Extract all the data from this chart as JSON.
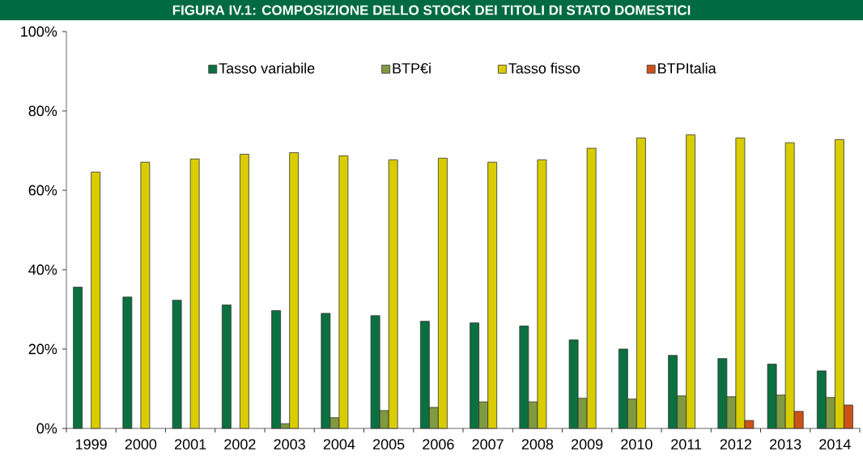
{
  "chart_data": {
    "type": "bar",
    "title": "FIGURA IV.1: COMPOSIZIONE DELLO STOCK DEI TITOLI DI STATO DOMESTICI",
    "categories": [
      "1999",
      "2000",
      "2001",
      "2002",
      "2003",
      "2004",
      "2005",
      "2006",
      "2007",
      "2008",
      "2009",
      "2010",
      "2011",
      "2012",
      "2013",
      "2014"
    ],
    "series": [
      {
        "name": "Tasso variabile",
        "color": "#0b7040",
        "values": [
          35.6,
          33.1,
          32.3,
          31.1,
          29.7,
          29.0,
          28.4,
          27.0,
          26.6,
          25.8,
          22.3,
          20.0,
          18.4,
          17.6,
          16.2,
          14.5
        ]
      },
      {
        "name": "BTP€i",
        "color": "#7f9a40",
        "values": [
          null,
          null,
          null,
          null,
          1.2,
          2.7,
          4.5,
          5.3,
          6.7,
          6.7,
          7.6,
          7.4,
          8.2,
          8.0,
          8.4,
          7.8
        ]
      },
      {
        "name": "Tasso fisso",
        "color": "#d9cc00",
        "values": [
          64.6,
          67.1,
          67.9,
          69.1,
          69.5,
          68.7,
          67.7,
          68.1,
          67.1,
          67.7,
          70.6,
          73.2,
          74.0,
          73.2,
          72.0,
          72.8
        ]
      },
      {
        "name": "BTPItalia",
        "color": "#cc5216",
        "values": [
          null,
          null,
          null,
          null,
          null,
          null,
          null,
          null,
          null,
          null,
          null,
          null,
          null,
          2.0,
          4.3,
          5.9
        ]
      }
    ],
    "ylim": [
      0,
      100
    ],
    "yticks": [
      {
        "value": 0,
        "label": "0%"
      },
      {
        "value": 20,
        "label": "20%"
      },
      {
        "value": 40,
        "label": "40%"
      },
      {
        "value": 60,
        "label": "60%"
      },
      {
        "value": 80,
        "label": "80%"
      },
      {
        "value": 100,
        "label": "100%"
      }
    ],
    "grid": false,
    "legend": "top"
  }
}
